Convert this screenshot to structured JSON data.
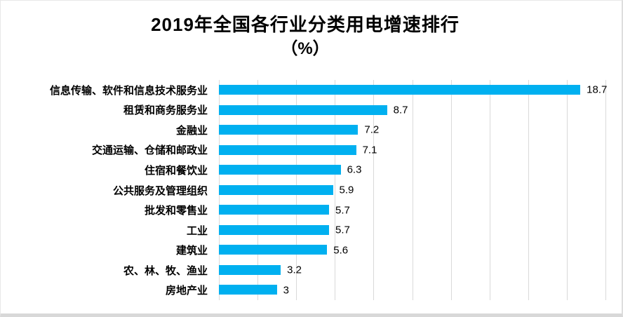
{
  "title": {
    "line1": "2019年全国各行业分类用电增速排行",
    "line2": "（%）"
  },
  "chart_data": {
    "type": "bar",
    "orientation": "horizontal",
    "title": "2019年全国各行业分类用电增速排行（%）",
    "categories": [
      "信息传输、软件和信息技术服务业",
      "租赁和商务服务业",
      "金融业",
      "交通运输、仓储和邮政业",
      "住宿和餐饮业",
      "公共服务及管理组织",
      "批发和零售业",
      "工业",
      "建筑业",
      "农、林、牧、渔业",
      "房地产业"
    ],
    "values": [
      18.7,
      8.7,
      7.2,
      7.1,
      6.3,
      5.9,
      5.7,
      5.7,
      5.6,
      3.2,
      3
    ],
    "value_labels": [
      "18.7",
      "8.7",
      "7.2",
      "7.1",
      "6.3",
      "5.9",
      "5.7",
      "5.7",
      "5.6",
      "3.2",
      "3"
    ],
    "xlabel": "",
    "ylabel": "",
    "xlim": [
      0,
      20
    ],
    "gridline_step": 2,
    "grid": true,
    "legend": false,
    "bar_color": "#00B0F0",
    "gridline_color": "#D9D9D9",
    "text_color": "#000000"
  }
}
